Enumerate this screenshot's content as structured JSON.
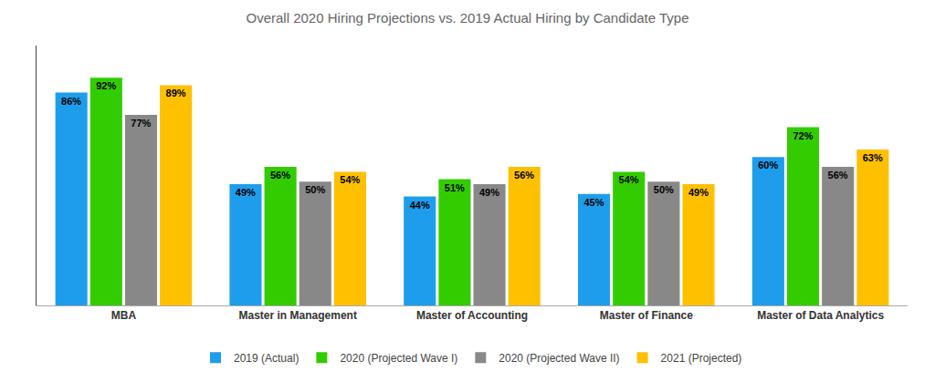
{
  "chart_data": {
    "type": "bar",
    "title": "Overall 2020 Hiring Projections vs. 2019 Actual Hiring by Candidate Type",
    "categories": [
      "MBA",
      "Master in Management",
      "Master of Accounting",
      "Master of Finance",
      "Master of Data Analytics"
    ],
    "series": [
      {
        "name": "2019 (Actual)",
        "color": "#1E9DEC",
        "values": [
          86,
          49,
          44,
          45,
          60
        ],
        "value_labels": [
          "86%",
          "49%",
          "44%",
          "45%",
          "60%"
        ]
      },
      {
        "name": "2020 (Projected Wave I)",
        "color": "#33CC00",
        "values": [
          92,
          56,
          51,
          54,
          72
        ],
        "value_labels": [
          "92%",
          "56%",
          "51%",
          "54%",
          "72%"
        ]
      },
      {
        "name": "2020 (Projected Wave II)",
        "color": "#888888",
        "values": [
          77,
          50,
          49,
          50,
          56
        ],
        "value_labels": [
          "77%",
          "50%",
          "49%",
          "50%",
          "56%"
        ]
      },
      {
        "name": "2021 (Projected)",
        "color": "#FFC000",
        "values": [
          89,
          54,
          56,
          49,
          63
        ],
        "value_labels": [
          "89%",
          "54%",
          "56%",
          "49%",
          "63%"
        ]
      }
    ],
    "ylim": [
      0,
      105
    ],
    "grid": false,
    "legend": "bottom",
    "data_labels": true,
    "tick_labels": "x"
  }
}
